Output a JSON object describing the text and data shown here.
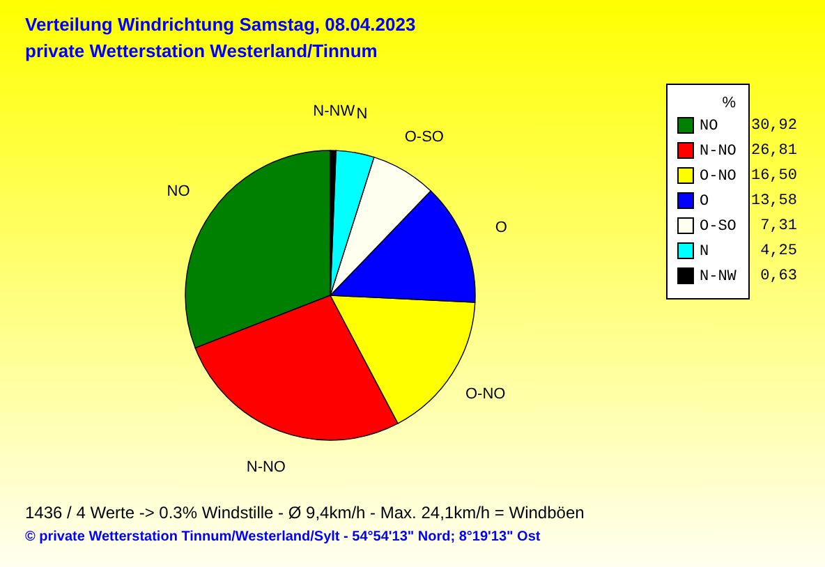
{
  "chart_data": {
    "type": "pie",
    "title": "Verteilung Windrichtung   Samstag, 08.04.2023",
    "subtitle": "private Wetterstation Westerland/Tinnum",
    "legend_title": "%",
    "legend": "top right",
    "categories": [
      "NO",
      "N-NO",
      "O-NO",
      "O",
      "O-SO",
      "N",
      "N-NW"
    ],
    "values": [
      30.92,
      26.81,
      16.5,
      13.58,
      7.31,
      4.25,
      0.63
    ],
    "value_labels": [
      "30,92",
      "26,81",
      "16,50",
      "13,58",
      "7,31",
      "4,25",
      "0,63"
    ],
    "colors": [
      "#008000",
      "#ff0000",
      "#ffff00",
      "#0000ff",
      "#fffff0",
      "#00ffff",
      "#000000"
    ],
    "annotations": [
      "1436 / 4 Werte  -> 0.3% Windstille   -   Ø 9,4km/h  -  Max. 24,1km/h = Windböen",
      "© private Wetterstation Tinnum/Westerland/Sylt  -  54°54'13\" Nord; 8°19'13\" Ost"
    ]
  }
}
